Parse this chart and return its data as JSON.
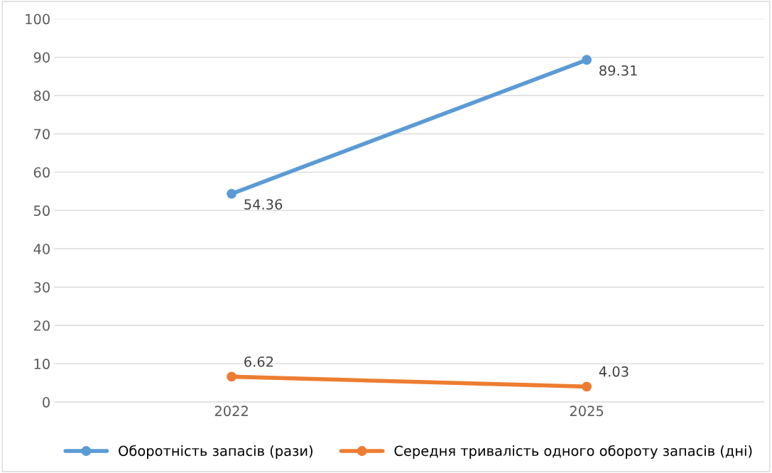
{
  "chart_data": {
    "type": "line",
    "categories": [
      "2022",
      "2025"
    ],
    "series": [
      {
        "name": "Оборотність запасів (рази)",
        "color": "#5b9bd5",
        "values": [
          54.36,
          89.31
        ]
      },
      {
        "name": "Середня тривалість одного обороту запасів (дні)",
        "color": "#ed7d31",
        "values": [
          6.62,
          4.03
        ]
      }
    ],
    "ylim": [
      0,
      100
    ],
    "yticks": [
      0,
      10,
      20,
      30,
      40,
      50,
      60,
      70,
      80,
      90,
      100
    ],
    "grid": "y",
    "legend": "bottom",
    "marker": "circle",
    "line_style": "solid",
    "data_labels": true
  }
}
